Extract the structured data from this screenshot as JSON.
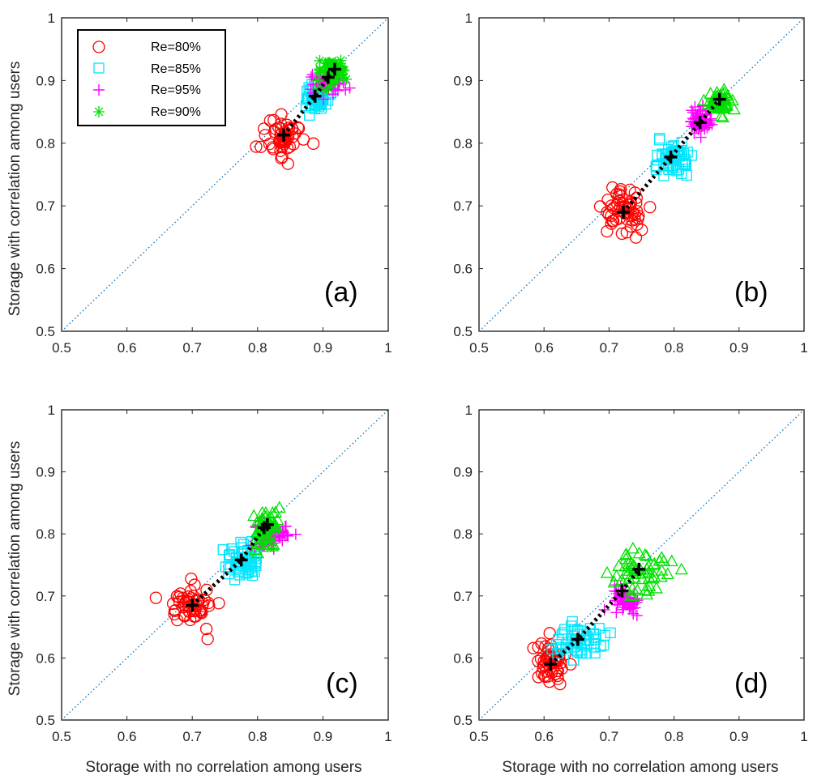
{
  "chart_data": {
    "type": "scatter",
    "xlabel": "Storage with no correlation among users",
    "ylabel": "Storage with correlation among users",
    "xlim": [
      0.5,
      1
    ],
    "ylim": [
      0.5,
      1
    ],
    "ticks": [
      "0.5",
      "0.6",
      "0.7",
      "0.8",
      "0.9",
      "1"
    ],
    "tick_values": [
      0.5,
      0.6,
      0.7,
      0.8,
      0.9,
      1.0
    ],
    "legend": [
      {
        "label": "Re=80%",
        "marker": "circle",
        "color": "#ff0000"
      },
      {
        "label": "Re=85%",
        "marker": "square",
        "color": "#00e5ff"
      },
      {
        "label": "Re=95%",
        "marker": "plus",
        "color": "#ff00ff"
      },
      {
        "label": "Re=90%",
        "marker": "asterisk",
        "color": "#00e000"
      }
    ],
    "panels": [
      {
        "label": "(a)",
        "clusters": [
          {
            "marker": "circle",
            "color": "#ff0000",
            "center": [
              0.84,
              0.81
            ],
            "spread": [
              0.016,
              0.017
            ]
          },
          {
            "marker": "square",
            "color": "#00e5ff",
            "center": [
              0.89,
              0.875
            ],
            "spread": [
              0.009,
              0.011
            ]
          },
          {
            "marker": "plus",
            "color": "#ff00ff",
            "center": [
              0.908,
              0.895
            ],
            "spread": [
              0.012,
              0.008
            ]
          },
          {
            "marker": "asterisk",
            "color": "#00e000",
            "center": [
              0.915,
              0.915
            ],
            "spread": [
              0.012,
              0.01
            ]
          }
        ],
        "means": [
          [
            0.84,
            0.813
          ],
          [
            0.888,
            0.875
          ],
          [
            0.908,
            0.905
          ],
          [
            0.918,
            0.918
          ]
        ]
      },
      {
        "label": "(b)",
        "clusters": [
          {
            "marker": "circle",
            "color": "#ff0000",
            "center": [
              0.722,
              0.69
            ],
            "spread": [
              0.015,
              0.019
            ]
          },
          {
            "marker": "square",
            "color": "#00e5ff",
            "center": [
              0.795,
              0.775
            ],
            "spread": [
              0.015,
              0.014
            ]
          },
          {
            "marker": "plus",
            "color": "#ff00ff",
            "center": [
              0.84,
              0.833
            ],
            "spread": [
              0.008,
              0.011
            ]
          },
          {
            "marker": "triangle",
            "color": "#00e000",
            "center": [
              0.868,
              0.868
            ],
            "spread": [
              0.01,
              0.008
            ]
          }
        ],
        "means": [
          [
            0.722,
            0.69
          ],
          [
            0.795,
            0.778
          ],
          [
            0.84,
            0.833
          ],
          [
            0.87,
            0.87
          ]
        ]
      },
      {
        "label": "(c)",
        "clusters": [
          {
            "marker": "circle",
            "color": "#ff0000",
            "center": [
              0.7,
              0.685
            ],
            "spread": [
              0.016,
              0.017
            ]
          },
          {
            "marker": "square",
            "color": "#00e5ff",
            "center": [
              0.777,
              0.757
            ],
            "spread": [
              0.014,
              0.014
            ]
          },
          {
            "marker": "plus",
            "color": "#ff00ff",
            "center": [
              0.82,
              0.8
            ],
            "spread": [
              0.012,
              0.012
            ]
          },
          {
            "marker": "triangle",
            "color": "#00e000",
            "center": [
              0.813,
              0.81
            ],
            "spread": [
              0.011,
              0.018
            ]
          }
        ],
        "means": [
          [
            0.7,
            0.685
          ],
          [
            0.775,
            0.758
          ],
          [
            0.81,
            0.81
          ],
          [
            0.815,
            0.815
          ]
        ]
      },
      {
        "label": "(d)",
        "clusters": [
          {
            "marker": "circle",
            "color": "#ff0000",
            "center": [
              0.608,
              0.59
            ],
            "spread": [
              0.014,
              0.017
            ]
          },
          {
            "marker": "square",
            "color": "#00e5ff",
            "center": [
              0.655,
              0.627
            ],
            "spread": [
              0.016,
              0.016
            ]
          },
          {
            "marker": "plus",
            "color": "#ff00ff",
            "center": [
              0.725,
              0.69
            ],
            "spread": [
              0.012,
              0.011
            ]
          },
          {
            "marker": "triangle",
            "color": "#00e000",
            "center": [
              0.748,
              0.74
            ],
            "spread": [
              0.022,
              0.022
            ]
          }
        ],
        "means": [
          [
            0.61,
            0.59
          ],
          [
            0.652,
            0.63
          ],
          [
            0.72,
            0.708
          ],
          [
            0.746,
            0.743
          ]
        ]
      }
    ]
  }
}
